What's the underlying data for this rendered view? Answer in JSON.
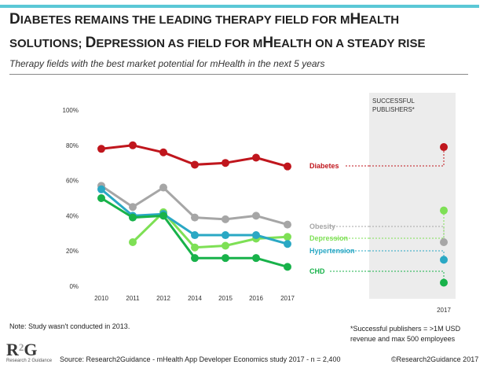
{
  "header": {
    "title_line1": [
      {
        "t": "D",
        "cls": "big"
      },
      {
        "t": "IABETES REMAINS THE LEADING THERAPY FIELD FOR M",
        "cls": "sc"
      },
      {
        "t": "H",
        "cls": "big"
      },
      {
        "t": "EALTH",
        "cls": "sc"
      }
    ],
    "title_line2": [
      {
        "t": "SOLUTIONS; ",
        "cls": "sc"
      },
      {
        "t": "D",
        "cls": "big"
      },
      {
        "t": "EPRESSION AS FIELD FOR M",
        "cls": "sc"
      },
      {
        "t": "H",
        "cls": "big"
      },
      {
        "t": "EALTH ON A STEADY RISE",
        "cls": "sc"
      }
    ],
    "subtitle": "Therapy fields with the best market potential for mHealth in the next 5 years"
  },
  "colors": {
    "Diabetes": "#c0161d",
    "Obesity": "#a6a6a6",
    "Depression": "#7ee055",
    "Hypertension": "#2aa8c4",
    "CHD": "#18b24a",
    "panel_bg": "#ececec",
    "accent": "#5bc8d6"
  },
  "chart_data": [
    {
      "type": "line",
      "x": [
        "2010",
        "2011",
        "2012",
        "2014",
        "2015",
        "2016",
        "2017"
      ],
      "y_ticks": [
        "0%",
        "20%",
        "40%",
        "60%",
        "80%",
        "100%"
      ],
      "ylim": [
        0,
        100
      ],
      "series": [
        {
          "name": "Diabetes",
          "values": [
            78,
            80,
            76,
            69,
            70,
            73,
            68
          ]
        },
        {
          "name": "Obesity",
          "values": [
            57,
            45,
            56,
            39,
            38,
            40,
            35
          ]
        },
        {
          "name": "Depression",
          "values": [
            null,
            25,
            42,
            22,
            23,
            27,
            28
          ]
        },
        {
          "name": "Hypertension",
          "values": [
            55,
            40,
            41,
            29,
            29,
            29,
            24
          ]
        },
        {
          "name": "CHD",
          "values": [
            50,
            39,
            40,
            16,
            16,
            16,
            11
          ]
        }
      ]
    },
    {
      "type": "scatter",
      "title": "SUCCESSFUL PUBLISHERS*",
      "title_lines": [
        "SUCCESSFUL",
        "PUBLISHERS*"
      ],
      "x": [
        "2017"
      ],
      "ylim": [
        0,
        100
      ],
      "series": [
        {
          "name": "Diabetes",
          "values": [
            79
          ]
        },
        {
          "name": "Depression",
          "values": [
            43
          ]
        },
        {
          "name": "Obesity",
          "values": [
            25
          ]
        },
        {
          "name": "Hypertension",
          "values": [
            15
          ]
        },
        {
          "name": "CHD",
          "values": [
            2
          ]
        }
      ]
    }
  ],
  "note": "Note: Study wasn't conducted in 2013.",
  "footnote": "*Successful publishers = >1M USD revenue and max 500 employees",
  "logo": {
    "left": "R",
    "mid": "2",
    "right": "G",
    "sub": "Research 2 Guidance"
  },
  "source": "Source: Research2Guidance - mHealth App Developer Economics study 2017 - n = 2,400",
  "copyright": "©Research2Guidance 2017"
}
